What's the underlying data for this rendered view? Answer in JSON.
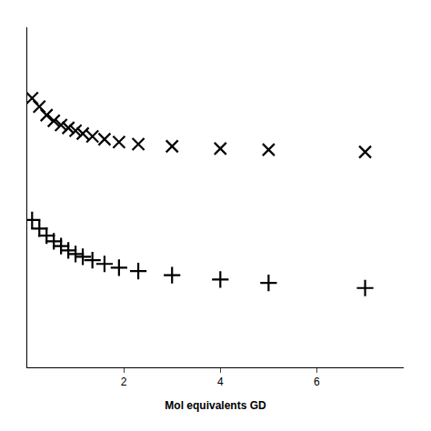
{
  "chart_data": {
    "type": "scatter",
    "xlabel": "Mol equivalents GD",
    "x": [
      0.1,
      0.25,
      0.4,
      0.55,
      0.7,
      0.85,
      1.0,
      1.15,
      1.35,
      1.6,
      1.9,
      2.3,
      3.0,
      4.0,
      5.0,
      7.0
    ],
    "series": [
      {
        "values": [
          9.5,
          9.2,
          8.9,
          8.7,
          8.55,
          8.45,
          8.35,
          8.25,
          8.15,
          8.05,
          7.95,
          7.88,
          7.8,
          7.72,
          7.68,
          7.6
        ],
        "marker": "x"
      },
      {
        "values": [
          5.2,
          4.9,
          4.65,
          4.45,
          4.28,
          4.13,
          4.0,
          3.9,
          3.78,
          3.65,
          3.52,
          3.4,
          3.25,
          3.1,
          2.98,
          2.8
        ],
        "marker": "plus"
      }
    ],
    "color": "#000000",
    "xlim": [
      0,
      7.8
    ],
    "xticks": [
      2,
      4,
      6
    ],
    "ylim": [
      0,
      12
    ],
    "grid": false,
    "tick_labels": "x"
  }
}
